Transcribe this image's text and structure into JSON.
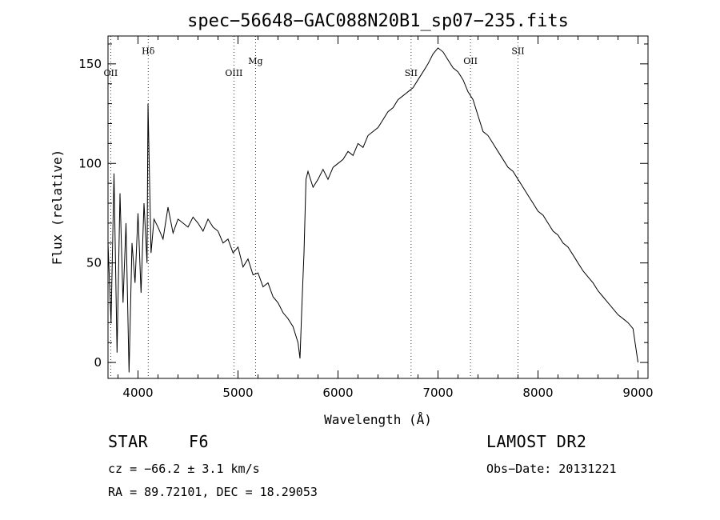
{
  "chart_data": {
    "type": "line",
    "title": "spec−56648−GAC088N20B1_sp07−235.fits",
    "xlabel": "Wavelength (Å)",
    "ylabel": "Flux (relative)",
    "xlim": [
      3700,
      9100
    ],
    "ylim": [
      -8,
      164
    ],
    "x_ticks": [
      4000,
      5000,
      6000,
      7000,
      8000,
      9000
    ],
    "y_ticks": [
      0,
      50,
      100,
      150
    ],
    "grid": false,
    "line_color": "#000000",
    "lines": [
      {
        "name": "OII",
        "x": 3727,
        "label_y": 144
      },
      {
        "name": "Hδ",
        "x": 4102,
        "label_y": 155
      },
      {
        "name": "OIII",
        "x": 4959,
        "label_y": 144
      },
      {
        "name": "Mg",
        "x": 5175,
        "label_y": 150
      },
      {
        "name": "SII",
        "x": 6731,
        "label_y": 144
      },
      {
        "name": "OII",
        "x": 7325,
        "label_y": 150
      },
      {
        "name": "SII",
        "x": 7800,
        "label_y": 155
      }
    ],
    "series": [
      {
        "x": [
          3700,
          3730,
          3760,
          3790,
          3820,
          3850,
          3880,
          3910,
          3940,
          3970,
          4000,
          4030,
          4060,
          4090,
          4100,
          4130,
          4160,
          4200,
          4250,
          4300,
          4350,
          4400,
          4450,
          4500,
          4550,
          4600,
          4650,
          4700,
          4750,
          4800,
          4850,
          4900,
          4950,
          5000,
          5050,
          5100,
          5150,
          5200,
          5250,
          5300,
          5350,
          5400,
          5450,
          5500,
          5550,
          5600,
          5620,
          5640,
          5660,
          5680,
          5700,
          5750,
          5800,
          5850,
          5900,
          5950,
          6000,
          6050,
          6100,
          6150,
          6200,
          6250,
          6300,
          6350,
          6400,
          6450,
          6500,
          6550,
          6600,
          6650,
          6700,
          6750,
          6800,
          6850,
          6900,
          6950,
          7000,
          7050,
          7100,
          7150,
          7200,
          7250,
          7300,
          7350,
          7400,
          7450,
          7500,
          7550,
          7600,
          7650,
          7700,
          7750,
          7800,
          7850,
          7900,
          7950,
          8000,
          8050,
          8100,
          8150,
          8200,
          8250,
          8300,
          8350,
          8400,
          8450,
          8500,
          8550,
          8600,
          8650,
          8700,
          8750,
          8800,
          8850,
          8900,
          8950,
          9000
        ],
        "values": [
          60,
          20,
          95,
          5,
          85,
          30,
          70,
          -5,
          60,
          40,
          75,
          35,
          80,
          50,
          130,
          55,
          72,
          68,
          62,
          78,
          65,
          72,
          70,
          68,
          73,
          70,
          66,
          72,
          68,
          66,
          60,
          62,
          55,
          58,
          48,
          52,
          44,
          45,
          38,
          40,
          33,
          30,
          25,
          22,
          18,
          10,
          2,
          30,
          55,
          92,
          96,
          88,
          92,
          97,
          92,
          98,
          100,
          102,
          106,
          104,
          110,
          108,
          114,
          116,
          118,
          122,
          126,
          128,
          132,
          134,
          136,
          138,
          142,
          146,
          150,
          155,
          158,
          156,
          152,
          148,
          146,
          142,
          136,
          132,
          124,
          116,
          114,
          110,
          106,
          102,
          98,
          96,
          92,
          88,
          84,
          80,
          76,
          74,
          70,
          66,
          64,
          60,
          58,
          54,
          50,
          46,
          43,
          40,
          36,
          33,
          30,
          27,
          24,
          22,
          20,
          17,
          0
        ]
      }
    ]
  },
  "info": {
    "object_class": "STAR",
    "subclass": "F6",
    "survey": "LAMOST DR2",
    "cz_line": "cz = −66.2 ± 3.1 km/s",
    "obs_date": "Obs−Date: 20131221",
    "coords": "RA =  89.72101, DEC =  18.29053"
  }
}
